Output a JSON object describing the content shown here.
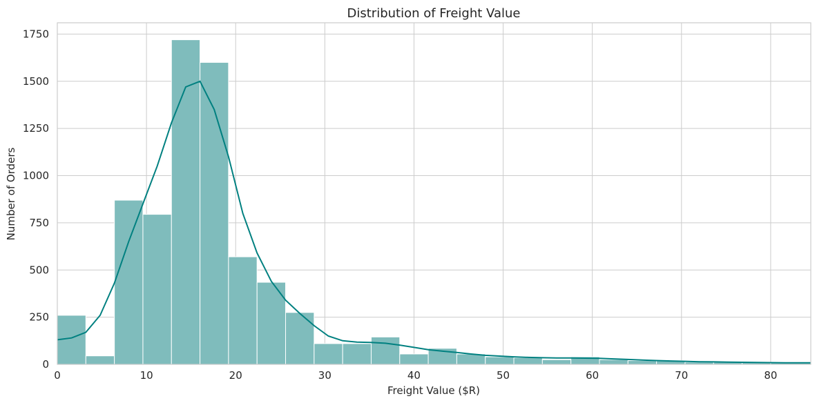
{
  "chart_data": {
    "type": "bar",
    "title": "Distribution of Freight Value",
    "xlabel": "Freight Value ($R)",
    "ylabel": "Number of Orders",
    "xlim": [
      0,
      84.5
    ],
    "ylim": [
      0,
      1810
    ],
    "xticks": [
      0,
      10,
      20,
      30,
      40,
      50,
      60,
      70,
      80
    ],
    "yticks": [
      0,
      250,
      500,
      750,
      1000,
      1250,
      1500,
      1750
    ],
    "grid": true,
    "bar_color": "#7fbcbc",
    "line_color": "#008080",
    "bin_edges": [
      0,
      3.2,
      6.4,
      9.6,
      12.8,
      16.0,
      19.2,
      22.4,
      25.6,
      28.8,
      32.0,
      35.2,
      38.4,
      41.6,
      44.8,
      48.0,
      51.2,
      54.4,
      57.6,
      60.8,
      64.0,
      67.2,
      70.4,
      73.6,
      76.8,
      80.0,
      84.5
    ],
    "values": [
      260,
      45,
      870,
      795,
      1720,
      1600,
      570,
      435,
      275,
      110,
      110,
      145,
      55,
      85,
      55,
      40,
      35,
      25,
      40,
      25,
      20,
      20,
      12,
      12,
      10,
      10
    ],
    "kde": {
      "x": [
        0,
        1.6,
        3.2,
        4.8,
        6.4,
        8.0,
        9.6,
        11.2,
        12.8,
        14.4,
        16.0,
        17.6,
        19.2,
        20.8,
        22.4,
        24.0,
        25.6,
        27.2,
        28.8,
        30.4,
        32.0,
        33.6,
        35.2,
        36.8,
        38.4,
        40.0,
        41.6,
        43.2,
        44.8,
        46.4,
        48.0,
        49.6,
        51.2,
        52.8,
        54.4,
        56.0,
        57.6,
        59.2,
        60.8,
        62.4,
        64.0,
        65.6,
        67.2,
        68.8,
        70.4,
        72.0,
        73.6,
        75.2,
        76.8,
        78.4,
        80.0,
        81.6,
        83.2,
        84.5
      ],
      "y": [
        130,
        140,
        170,
        260,
        430,
        650,
        850,
        1050,
        1280,
        1470,
        1500,
        1350,
        1100,
        800,
        590,
        440,
        340,
        270,
        205,
        150,
        125,
        118,
        116,
        112,
        102,
        90,
        78,
        70,
        63,
        55,
        48,
        44,
        40,
        37,
        35,
        34,
        34,
        33,
        32,
        29,
        26,
        23,
        20,
        18,
        16,
        14,
        13,
        12,
        11,
        10,
        9,
        8,
        8,
        8
      ]
    }
  }
}
